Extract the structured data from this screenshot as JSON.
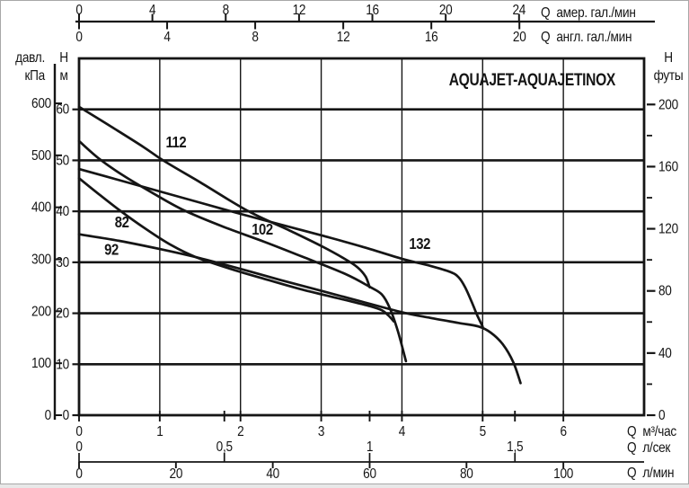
{
  "page": {
    "background": "#ffffff",
    "border_color": "#a8a8a8",
    "ink": "#151515"
  },
  "title": {
    "text": "AQUAJET-AQUAJETINOX"
  },
  "chart_data": {
    "type": "line",
    "title": "AQUAJET-AQUAJETINOX",
    "xlabel": "Q м³/час",
    "ylabel": "H м",
    "xlim": [
      0,
      7
    ],
    "ylim": [
      0,
      70
    ],
    "grid": {
      "x_step": 1,
      "y_step": 10,
      "x_gridlines": [
        1,
        2,
        3,
        4,
        5,
        6
      ],
      "y_gridlines": [
        10,
        20,
        30,
        40,
        50,
        60
      ]
    },
    "axes": {
      "top_us_gpm": {
        "title": "Q  амер. гал./мин",
        "ticks": [
          0,
          4,
          8,
          12,
          16,
          20,
          24
        ],
        "m3h_per_unit": 0.22712
      },
      "top_uk_gpm": {
        "title": "Q  англ. гал./мин",
        "ticks": [
          0,
          4,
          8,
          12,
          16,
          20
        ],
        "m3h_per_unit": 0.27277
      },
      "left_pressure_kpa": {
        "title_line1": "давл.",
        "title_line2": "кПа",
        "ticks": [
          600,
          500,
          400,
          300,
          200,
          100,
          0
        ],
        "m_per_unit": 0.10197
      },
      "left_head_m": {
        "title_line1": "H",
        "title_line2": "м",
        "ticks": [
          60,
          50,
          40,
          30,
          20,
          10,
          0
        ]
      },
      "right_head_ft": {
        "title_line1": "H",
        "title_line2": "футы",
        "ticks": [
          200,
          160,
          120,
          80,
          40,
          0
        ],
        "minor_ticks": [
          180,
          140,
          100,
          60,
          20
        ],
        "m_per_unit": 0.3048
      },
      "bottom_m3h": {
        "title": "Q  м³/час",
        "ticks": [
          0,
          1,
          2,
          3,
          4,
          5,
          6
        ]
      },
      "bottom_ls": {
        "title": "Q  л/сек",
        "ticks": [
          0,
          0.5,
          1,
          1.5
        ],
        "tick_labels": [
          "0",
          "0,5",
          "1",
          "1,5"
        ],
        "m3h_per_unit": 3.6
      },
      "bottom_lmin": {
        "title": "Q  л/мин",
        "ticks": [
          0,
          20,
          40,
          60,
          80,
          100
        ],
        "m3h_per_unit": 0.06
      }
    },
    "series": [
      {
        "name": "112",
        "label_pos": [
          1.2,
          53.6
        ],
        "points": [
          [
            0,
            60.5
          ],
          [
            0.4,
            56.6
          ],
          [
            0.8,
            52.6
          ],
          [
            1.04,
            50
          ],
          [
            1.5,
            45.7
          ],
          [
            2.1,
            40
          ],
          [
            2.6,
            36.3
          ],
          [
            3.0,
            33.2
          ],
          [
            3.3,
            30.6
          ],
          [
            3.45,
            29.0
          ],
          [
            3.55,
            27.2
          ],
          [
            3.6,
            25.1
          ]
        ]
      },
      {
        "name": "102",
        "label_pos": [
          2.27,
          36.5
        ],
        "points": [
          [
            0,
            53.8
          ],
          [
            0.25,
            50.3
          ],
          [
            0.55,
            47.0
          ],
          [
            0.9,
            43.7
          ],
          [
            1.3,
            40.2
          ],
          [
            1.8,
            36.9
          ],
          [
            2.3,
            34.0
          ],
          [
            2.8,
            30.9
          ],
          [
            3.3,
            27.7
          ],
          [
            3.6,
            25.2
          ],
          [
            3.75,
            23.7
          ],
          [
            3.85,
            21.0
          ],
          [
            3.95,
            16.5
          ],
          [
            4.05,
            10.6
          ]
        ]
      },
      {
        "name": "82",
        "label_pos": [
          0.53,
          37.9
        ],
        "points": [
          [
            0,
            46.5
          ],
          [
            0.25,
            43.3
          ],
          [
            0.52,
            40.0
          ],
          [
            0.85,
            36.3
          ],
          [
            1.15,
            33.3
          ],
          [
            1.45,
            31.0
          ],
          [
            1.9,
            28.6
          ],
          [
            2.35,
            26.5
          ],
          [
            2.8,
            24.5
          ],
          [
            3.3,
            22.6
          ],
          [
            3.6,
            21.4
          ],
          [
            3.75,
            20.6
          ],
          [
            3.83,
            19.6
          ],
          [
            3.9,
            18.4
          ]
        ]
      },
      {
        "name": "92",
        "label_pos": [
          0.4,
          32.5
        ],
        "points": [
          [
            0,
            35.5
          ],
          [
            0.5,
            34.2
          ],
          [
            1,
            32.6
          ],
          [
            1.5,
            30.8
          ],
          [
            2,
            28.7
          ],
          [
            2.5,
            26.5
          ],
          [
            3,
            24.4
          ],
          [
            3.5,
            22.3
          ],
          [
            4,
            20.2
          ],
          [
            4.35,
            19.1
          ],
          [
            4.7,
            18.1
          ],
          [
            4.95,
            17.4
          ],
          [
            5.1,
            16.2
          ],
          [
            5.25,
            13.9
          ],
          [
            5.38,
            10.4
          ],
          [
            5.47,
            6.3
          ]
        ]
      },
      {
        "name": "132",
        "label_pos": [
          4.22,
          33.7
        ],
        "points": [
          [
            0,
            48.3
          ],
          [
            0.5,
            46.1
          ],
          [
            1,
            43.9
          ],
          [
            1.5,
            41.7
          ],
          [
            2,
            39.5
          ],
          [
            2.5,
            37.4
          ],
          [
            3,
            35.3
          ],
          [
            3.5,
            33.1
          ],
          [
            4,
            30.7
          ],
          [
            4.35,
            29.3
          ],
          [
            4.6,
            28.1
          ],
          [
            4.7,
            27.1
          ],
          [
            4.78,
            25.2
          ],
          [
            4.86,
            22.4
          ],
          [
            4.93,
            19.7
          ],
          [
            5,
            17.4
          ]
        ]
      }
    ],
    "legend": null,
    "ink_color": "#151515"
  }
}
